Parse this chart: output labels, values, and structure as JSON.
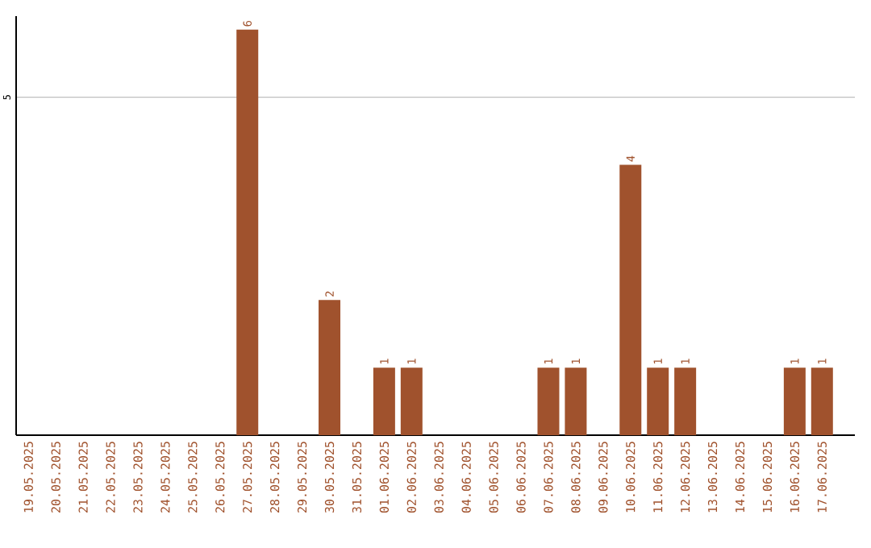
{
  "chart_data": {
    "type": "bar",
    "categories": [
      "19.05.2025",
      "20.05.2025",
      "21.05.2025",
      "22.05.2025",
      "23.05.2025",
      "24.05.2025",
      "25.05.2025",
      "26.05.2025",
      "27.05.2025",
      "28.05.2025",
      "29.05.2025",
      "30.05.2025",
      "31.05.2025",
      "01.06.2025",
      "02.06.2025",
      "03.06.2025",
      "04.06.2025",
      "05.06.2025",
      "06.06.2025",
      "07.06.2025",
      "08.06.2025",
      "09.06.2025",
      "10.06.2025",
      "11.06.2025",
      "12.06.2025",
      "13.06.2025",
      "14.06.2025",
      "15.06.2025",
      "16.06.2025",
      "17.06.2025"
    ],
    "values": [
      0,
      0,
      0,
      0,
      0,
      0,
      0,
      0,
      6,
      0,
      0,
      2,
      0,
      1,
      1,
      0,
      0,
      0,
      0,
      1,
      1,
      0,
      4,
      1,
      1,
      0,
      0,
      0,
      1,
      1
    ],
    "color": "#a0522d",
    "value_labels": [
      null,
      null,
      null,
      null,
      null,
      null,
      null,
      null,
      "6",
      null,
      null,
      "2",
      null,
      "1",
      "1",
      null,
      null,
      null,
      null,
      "1",
      "1",
      null,
      "4",
      "1",
      "1",
      null,
      null,
      null,
      "1",
      "1"
    ],
    "ylim": [
      0,
      6.2
    ],
    "yticks": [
      5
    ],
    "grid": "y"
  }
}
